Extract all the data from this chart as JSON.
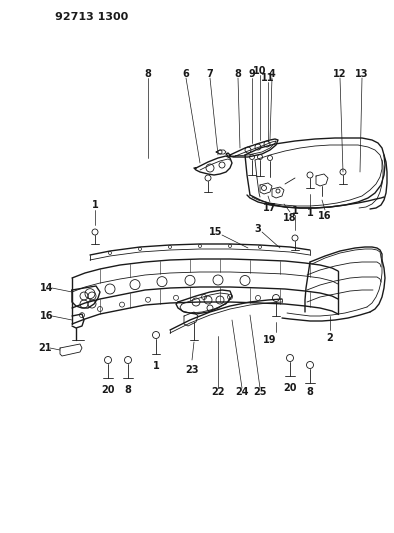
{
  "title": "92713 1300",
  "bg_color": "#ffffff",
  "line_color": "#1a1a1a",
  "fig_width": 3.94,
  "fig_height": 5.33,
  "dpi": 100
}
